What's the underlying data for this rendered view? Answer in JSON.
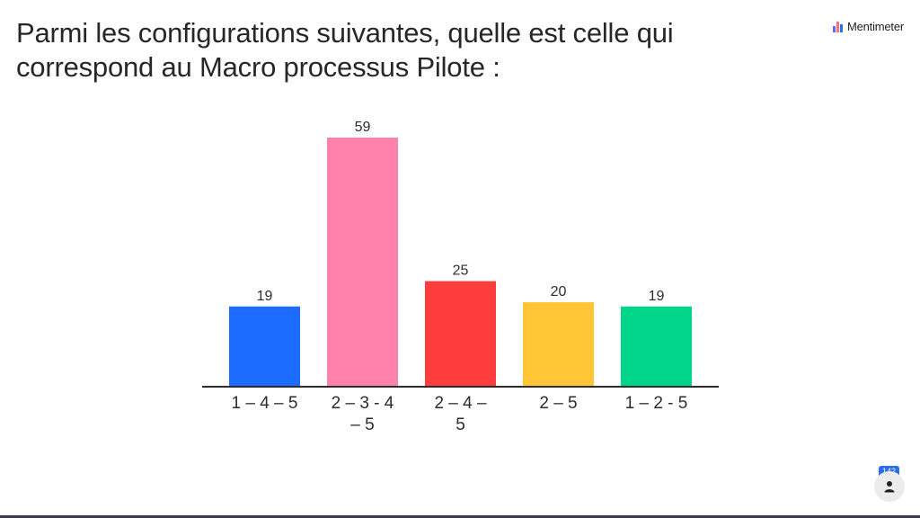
{
  "title": "Parmi les configurations suivantes, quelle est celle qui correspond au Macro processus Pilote :",
  "brand": {
    "name": "Mentimeter",
    "mark_colors": [
      "#5a6bff",
      "#ff6b8a",
      "#2b6de8"
    ]
  },
  "participants": {
    "count": "142",
    "icon": "person-icon"
  },
  "chart_data": {
    "type": "bar",
    "categories": [
      [
        "1 – 4 – 5"
      ],
      [
        "2 – 3 - 4",
        "– 5"
      ],
      [
        "2 – 4 –",
        "5"
      ],
      [
        "2 – 5"
      ],
      [
        "1 – 2 - 5"
      ]
    ],
    "values": [
      19,
      59,
      25,
      20,
      19
    ],
    "data_labels": [
      "19",
      "59",
      "25",
      "20",
      "19"
    ],
    "colors": [
      "#1b6cff",
      "#ff82ac",
      "#ff3d3d",
      "#ffc535",
      "#00d68a"
    ],
    "ylim": [
      0,
      59
    ],
    "grid": false,
    "legend": "none"
  }
}
